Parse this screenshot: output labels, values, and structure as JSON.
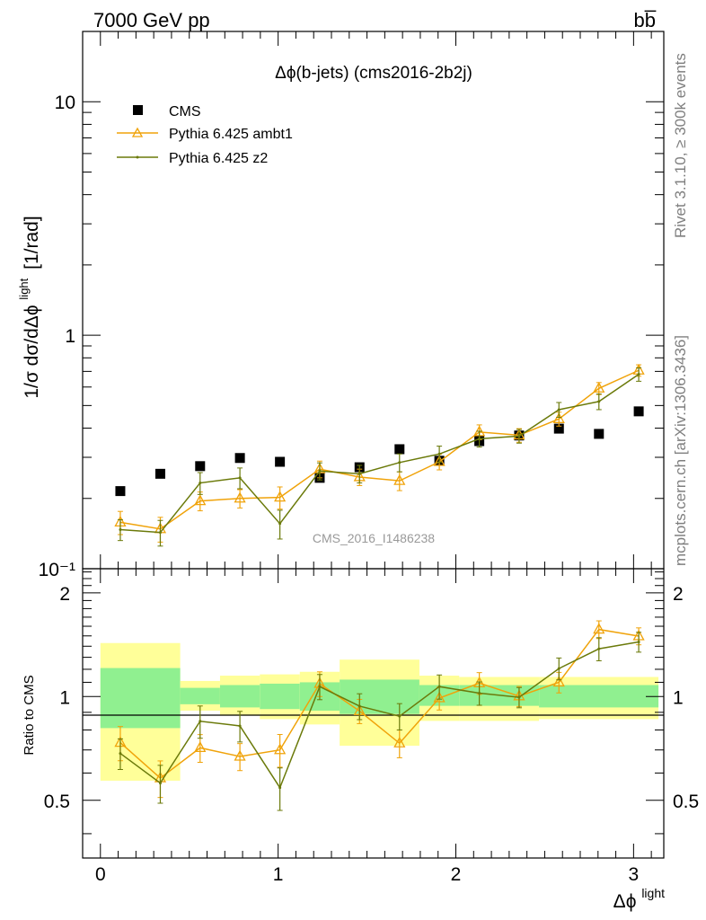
{
  "header": {
    "left": "7000 GeV pp",
    "right": "bb̅"
  },
  "side": {
    "rivet": "Rivet 3.1.10, ≥ 300k events",
    "mcplots": "mcplots.cern.ch [arXiv:1306.3436]"
  },
  "chart_data": {
    "type": "line",
    "title": "Δϕ(b-jets) (cms2016-2b2j)",
    "watermark": "CMS_2016_I1486238",
    "xlabel": "Δϕ",
    "xlabel_sup": "light",
    "ylabel": "1/σ dσ/dΔϕ",
    "ylabel_sup": "light",
    "ylabel_unit": "[1/rad]",
    "ratio_ylabel": "Ratio to CMS",
    "xlim": [
      -0.1,
      3.17
    ],
    "ylim": [
      0.1,
      20
    ],
    "yscale": "log",
    "ratio_ylim": [
      0.34,
      2.35
    ],
    "x_ticks": [
      "0",
      "1",
      "2",
      "3"
    ],
    "y_ticks": [
      "10⁻¹",
      "1",
      "10"
    ],
    "ratio_ticks": [
      "0.5",
      "1",
      "2"
    ],
    "x": [
      0.112,
      0.337,
      0.561,
      0.785,
      1.01,
      1.234,
      1.458,
      1.683,
      1.907,
      2.132,
      2.356,
      2.58,
      2.805,
      3.029
    ],
    "bin_edges": [
      0,
      0.449,
      0.673,
      0.897,
      1.122,
      1.346,
      1.795,
      2.019,
      2.468,
      3.14
    ],
    "series": [
      {
        "name": "CMS",
        "marker": "square",
        "color": "#000000",
        "values": [
          0.215,
          0.255,
          0.275,
          0.298,
          0.287,
          0.245,
          0.272,
          0.325,
          0.29,
          0.352,
          0.372,
          0.398,
          0.378,
          0.472
        ]
      },
      {
        "name": "Pythia 6.425 ambt1",
        "marker": "triangle",
        "color": "#f0a30a",
        "values": [
          0.158,
          0.148,
          0.195,
          0.2,
          0.202,
          0.267,
          0.247,
          0.238,
          0.287,
          0.385,
          0.373,
          0.438,
          0.592,
          0.707
        ],
        "errors": [
          0.018,
          0.018,
          0.018,
          0.018,
          0.022,
          0.022,
          0.02,
          0.022,
          0.022,
          0.028,
          0.025,
          0.03,
          0.035,
          0.04
        ],
        "ratio": [
          0.735,
          0.58,
          0.71,
          0.67,
          0.7,
          1.09,
          0.908,
          0.732,
          0.99,
          1.094,
          1.003,
          1.1,
          1.566,
          1.498
        ]
      },
      {
        "name": "Pythia 6.425 z2",
        "marker": "dot",
        "color": "#6b7a0a",
        "values": [
          0.147,
          0.143,
          0.233,
          0.245,
          0.156,
          0.262,
          0.255,
          0.285,
          0.31,
          0.36,
          0.37,
          0.48,
          0.52,
          0.68
        ],
        "errors": [
          0.015,
          0.018,
          0.025,
          0.025,
          0.022,
          0.022,
          0.022,
          0.025,
          0.025,
          0.028,
          0.025,
          0.035,
          0.04,
          0.045
        ],
        "ratio": [
          0.684,
          0.561,
          0.848,
          0.822,
          0.544,
          1.069,
          0.938,
          0.877,
          1.069,
          1.023,
          0.995,
          1.206,
          1.376,
          1.441
        ]
      }
    ],
    "bands": {
      "inner_color": "#90f090",
      "outer_color": "#ffff99",
      "inner": [
        [
          0.81,
          1.21
        ],
        [
          0.95,
          1.06
        ],
        [
          0.93,
          1.08
        ],
        [
          0.92,
          1.09
        ],
        [
          0.91,
          1.1
        ],
        [
          0.89,
          1.12
        ],
        [
          0.94,
          1.08
        ],
        [
          0.94,
          1.08
        ],
        [
          0.93,
          1.08
        ]
      ],
      "outer": [
        [
          0.57,
          1.43
        ],
        [
          0.91,
          1.11
        ],
        [
          0.88,
          1.15
        ],
        [
          0.86,
          1.16
        ],
        [
          0.83,
          1.18
        ],
        [
          0.72,
          1.28
        ],
        [
          0.85,
          1.15
        ],
        [
          0.85,
          1.14
        ],
        [
          0.86,
          1.14
        ]
      ]
    },
    "grid": false,
    "legend_position": "top-left"
  }
}
